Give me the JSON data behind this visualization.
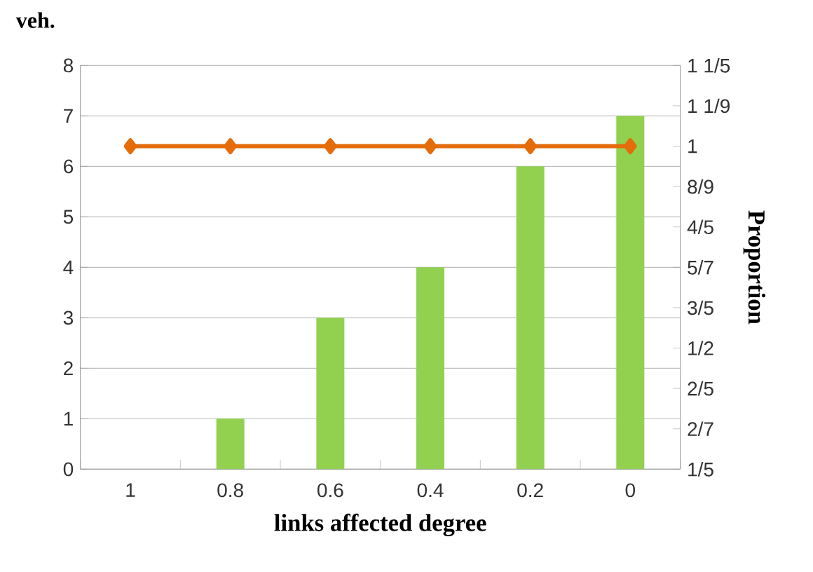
{
  "chart_data": {
    "type": "bar",
    "xlabel": "links affected degree",
    "ylabel": "veh.",
    "y2label": "Proportion",
    "categories": [
      "1",
      "0.8",
      "0.6",
      "0.4",
      "0.2",
      "0"
    ],
    "series": [
      {
        "color": "#92d050",
        "values": [
          0,
          1,
          3,
          4,
          6,
          7
        ]
      },
      {
        "type": "line",
        "axis": "y2",
        "color": "#e46c0a",
        "marker": "diamond",
        "line_style": "solid",
        "values": [
          1,
          1,
          1,
          1,
          1,
          1
        ]
      }
    ],
    "ylim": [
      0,
      8
    ],
    "yticks": [
      0,
      1,
      2,
      3,
      4,
      5,
      6,
      7,
      8
    ],
    "y2lim": [
      0.2,
      1.2
    ],
    "y2ticks": [
      {
        "value": 0.2,
        "label": "1/5"
      },
      {
        "value": 0.3,
        "label": "2/7"
      },
      {
        "value": 0.4,
        "label": "2/5"
      },
      {
        "value": 0.5,
        "label": "1/2"
      },
      {
        "value": 0.6,
        "label": "3/5"
      },
      {
        "value": 0.7,
        "label": "5/7"
      },
      {
        "value": 0.8,
        "label": "4/5"
      },
      {
        "value": 0.9,
        "label": "8/9"
      },
      {
        "value": 1.0,
        "label": "1"
      },
      {
        "value": 1.1,
        "label": "1 1/9"
      },
      {
        "value": 1.2,
        "label": "1 1/5"
      }
    ],
    "grid": "y"
  }
}
